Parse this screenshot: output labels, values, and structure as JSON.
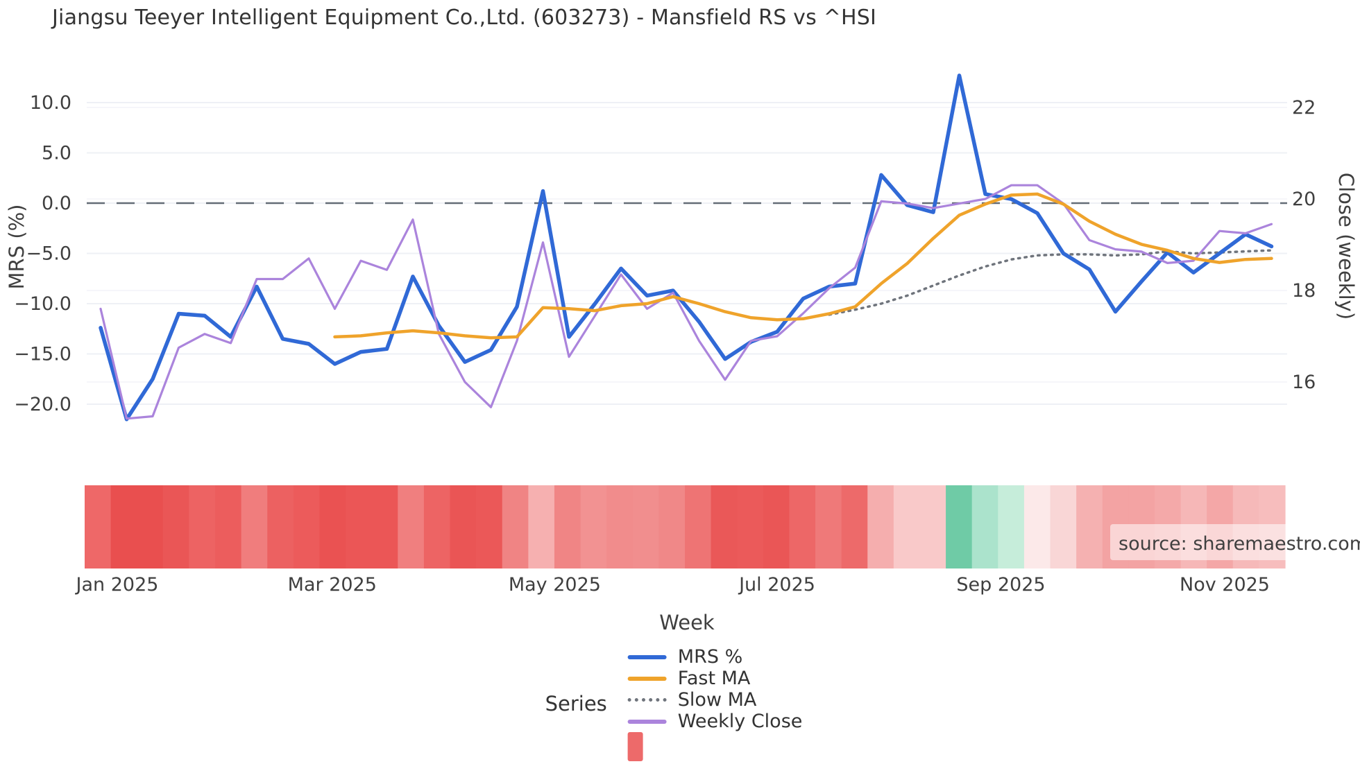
{
  "title": "Jiangsu Teeyer Intelligent Equipment Co.,Ltd. (603273) - Mansfield RS vs ^HSI",
  "source_note": "source: sharemaestro.com",
  "legend": {
    "title": "Series",
    "extra_swatch_color": "#ed6a6a"
  },
  "chart_data": {
    "type": "line",
    "title": "Jiangsu Teeyer Intelligent Equipment Co.,Ltd. (603273) - Mansfield RS vs ^HSI",
    "weeks_count": 46,
    "x_axis": {
      "label": "Week",
      "ticks": [
        {
          "label": "Jan 2025",
          "week": 0.64
        },
        {
          "label": "Mar 2025",
          "week": 8.9
        },
        {
          "label": "May 2025",
          "week": 17.45
        },
        {
          "label": "Jul 2025",
          "week": 26.0
        },
        {
          "label": "Sep 2025",
          "week": 34.6
        },
        {
          "label": "Nov 2025",
          "week": 43.2
        }
      ]
    },
    "y_axis_left": {
      "label": "MRS (%)",
      "range": [
        -23,
        14
      ],
      "ticks": [
        {
          "value": 10,
          "label": "10.0"
        },
        {
          "value": 5,
          "label": "5.0"
        },
        {
          "value": 0,
          "label": "0.0"
        },
        {
          "value": -5,
          "label": "−5.0"
        },
        {
          "value": -10,
          "label": "−10.0"
        },
        {
          "value": -15,
          "label": "−15.0"
        },
        {
          "value": -20,
          "label": "−20.0"
        }
      ]
    },
    "y_axis_right": {
      "label": "Close (weekly)",
      "range": [
        15,
        22.5
      ],
      "ticks": [
        {
          "value": 22,
          "label": "22"
        },
        {
          "value": 20,
          "label": "20"
        },
        {
          "value": 18,
          "label": "18"
        },
        {
          "value": 16,
          "label": "16"
        }
      ]
    },
    "zero_line": 0,
    "grid": true,
    "legend_position": "bottom",
    "series": [
      {
        "name": "MRS %",
        "axis": "left",
        "style": "solid",
        "color": "#3069d6",
        "values": [
          -12.4,
          -21.5,
          -17.5,
          -11.0,
          -11.2,
          -13.3,
          -8.3,
          -13.5,
          -14.0,
          -16.0,
          -14.8,
          -14.5,
          -7.3,
          -12.2,
          -15.8,
          -14.6,
          -10.3,
          1.2,
          -13.3,
          -10.0,
          -6.5,
          -9.2,
          -8.7,
          -11.8,
          -15.5,
          -13.8,
          -12.8,
          -9.5,
          -8.3,
          -8.0,
          2.8,
          -0.2,
          -0.9,
          12.7,
          0.9,
          0.4,
          -1.0,
          -5.0,
          -6.6,
          -10.8,
          -7.8,
          -4.9,
          -6.9,
          -5.0,
          -3.1,
          -4.3
        ]
      },
      {
        "name": "Fast MA",
        "axis": "left",
        "style": "solid",
        "color": "#efa32b",
        "values": [
          null,
          null,
          null,
          null,
          null,
          null,
          null,
          null,
          null,
          -13.3,
          -13.2,
          -12.9,
          -12.7,
          -12.9,
          -13.2,
          -13.4,
          -13.3,
          -10.4,
          -10.5,
          -10.7,
          -10.2,
          -10.0,
          -9.3,
          -10.0,
          -10.8,
          -11.4,
          -11.6,
          -11.5,
          -11.0,
          -10.3,
          -8.0,
          -6.0,
          -3.5,
          -1.2,
          -0.1,
          0.8,
          0.9,
          -0.1,
          -1.8,
          -3.1,
          -4.1,
          -4.7,
          -5.5,
          -5.9,
          -5.6,
          -5.5
        ]
      },
      {
        "name": "Slow MA",
        "axis": "left",
        "style": "dotted",
        "color": "#6f747c",
        "values": [
          null,
          null,
          null,
          null,
          null,
          null,
          null,
          null,
          null,
          null,
          null,
          null,
          null,
          null,
          null,
          null,
          null,
          null,
          null,
          null,
          null,
          null,
          null,
          null,
          null,
          null,
          null,
          null,
          -11.1,
          -10.6,
          -10.0,
          -9.2,
          -8.2,
          -7.2,
          -6.3,
          -5.6,
          -5.2,
          -5.1,
          -5.1,
          -5.2,
          -5.1,
          -4.8,
          -5.0,
          -4.9,
          -4.8,
          -4.7
        ]
      },
      {
        "name": "Weekly Close",
        "axis": "right",
        "style": "solid",
        "color": "#ab84dc",
        "values": [
          17.6,
          15.2,
          15.25,
          16.75,
          17.05,
          16.85,
          18.25,
          18.25,
          18.7,
          17.6,
          18.65,
          18.45,
          19.55,
          17.05,
          16.0,
          15.45,
          16.9,
          19.05,
          16.55,
          17.45,
          18.35,
          17.6,
          17.95,
          16.9,
          16.05,
          16.9,
          17.0,
          17.5,
          18.05,
          18.5,
          19.95,
          19.9,
          19.8,
          19.9,
          20.0,
          20.3,
          20.3,
          19.9,
          19.1,
          18.9,
          18.85,
          18.6,
          18.65,
          19.3,
          19.25,
          19.45
        ]
      }
    ],
    "heatmap_strip": {
      "description": "weekly signal strip under plot",
      "colors": [
        "#ee6868",
        "#e94f4f",
        "#e94f4f",
        "#ea5656",
        "#ed6363",
        "#ec5d5d",
        "#f07d7d",
        "#ec6161",
        "#ec5b5b",
        "#ea5252",
        "#eb5656",
        "#eb5656",
        "#f07f7f",
        "#ed6464",
        "#ea5555",
        "#eb5858",
        "#f08484",
        "#f6b0b0",
        "#f08585",
        "#f29292",
        "#f18c8c",
        "#f18e8e",
        "#f08888",
        "#ee7474",
        "#ea5858",
        "#eb5a5a",
        "#ea5656",
        "#ed6767",
        "#ef7979",
        "#ed6a6a",
        "#f5aeae",
        "#f9c9c9",
        "#f9c9c9",
        "#6fcba6",
        "#abe3cc",
        "#c6edda",
        "#fce9e9",
        "#f9d6d6",
        "#f5b1b1",
        "#f3a3a3",
        "#f3a3a3",
        "#f4a9a9",
        "#f6b7b7",
        "#f4a7a7",
        "#f6b9b9",
        "#f7bdbd"
      ]
    }
  }
}
